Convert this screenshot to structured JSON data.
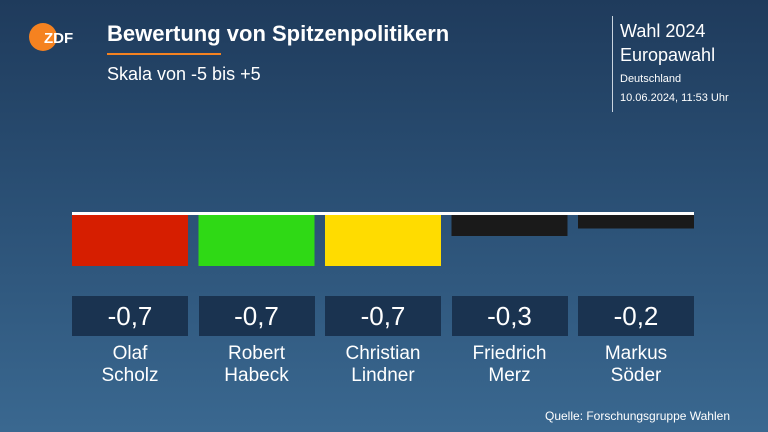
{
  "header": {
    "logo_text": "ZDF",
    "title": "Bewertung von Spitzenpolitikern",
    "subtitle": "Skala von -5 bis +5"
  },
  "info": {
    "election": "Wahl 2024",
    "type": "Europawahl",
    "region": "Deutschland",
    "date": "10.06.2024, 11:53 Uhr"
  },
  "source": "Quelle: Forschungsgruppe Wahlen",
  "colors": {
    "logo": "#f58220",
    "baseline": "#ffffff"
  },
  "chart_data": {
    "type": "bar",
    "title": "Bewertung von Spitzenpolitikern",
    "subtitle": "Skala von -5 bis +5",
    "categories": [
      "Olaf Scholz",
      "Robert Habeck",
      "Christian Lindner",
      "Friedrich Merz",
      "Markus Söder"
    ],
    "name_lines": [
      [
        "Olaf",
        "Scholz"
      ],
      [
        "Robert",
        "Habeck"
      ],
      [
        "Christian",
        "Lindner"
      ],
      [
        "Friedrich",
        "Merz"
      ],
      [
        "Markus",
        "Söder"
      ]
    ],
    "values": [
      -0.7,
      -0.7,
      -0.7,
      -0.3,
      -0.2
    ],
    "value_labels": [
      "-0,7",
      "-0,7",
      "-0,7",
      "-0,3",
      "-0,2"
    ],
    "colors": [
      "#d61e00",
      "#2fd915",
      "#ffdc00",
      "#1a1a1a",
      "#1a1a1a"
    ],
    "ylim": [
      -5,
      5
    ],
    "grid": false
  }
}
